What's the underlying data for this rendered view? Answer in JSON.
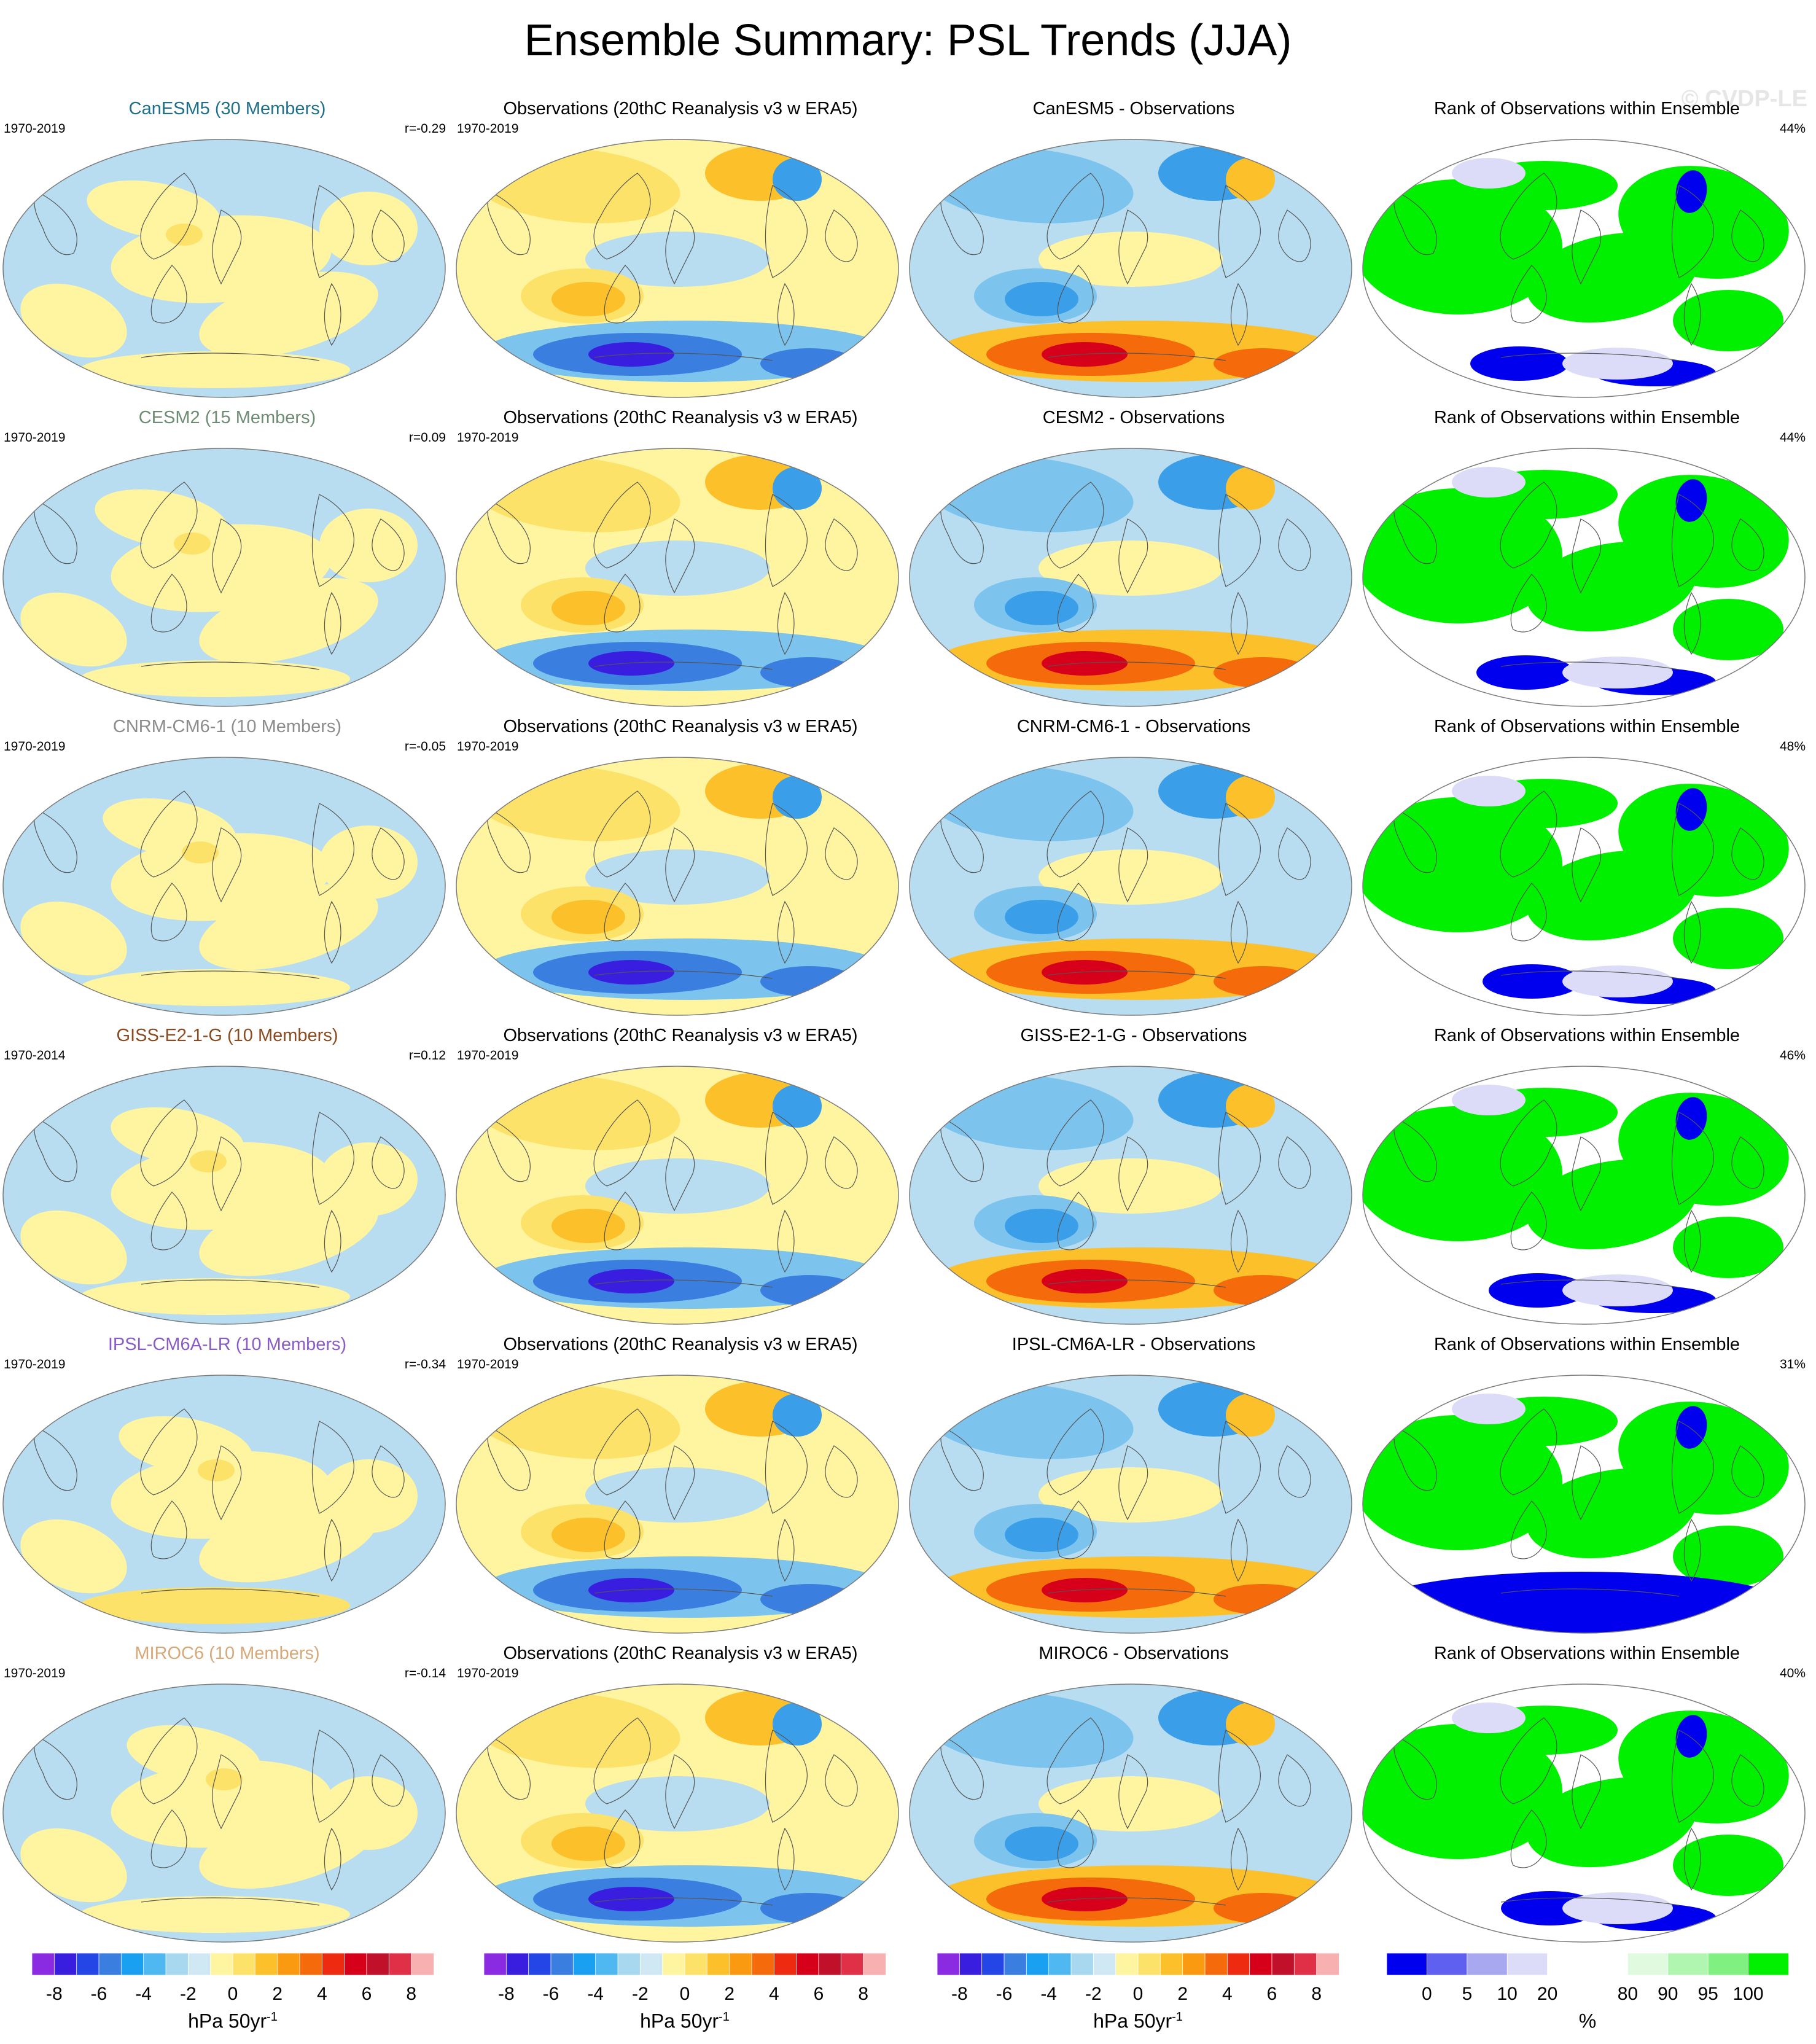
{
  "figure": {
    "title": "Ensemble Summary: PSL Trends (JJA)",
    "watermark": "© CVDP-LE"
  },
  "rows": [
    {
      "model": {
        "title": "CanESM5 (30 Members)",
        "title_color": "#1f6f8b",
        "period": "1970-2019",
        "pattern_corr": "r=-0.29"
      },
      "obs": {
        "title": "Observations (20thC Reanalysis v3 w ERA5)",
        "period": "1970-2019"
      },
      "diff": {
        "title": "CanESM5 - Observations"
      },
      "rank": {
        "title": "Rank of Observations within Ensemble",
        "percent": "44%"
      }
    },
    {
      "model": {
        "title": "CESM2 (15 Members)",
        "title_color": "#6e8c73",
        "period": "1970-2019",
        "pattern_corr": "r=0.09"
      },
      "obs": {
        "title": "Observations (20thC Reanalysis v3 w ERA5)",
        "period": "1970-2019"
      },
      "diff": {
        "title": "CESM2 - Observations"
      },
      "rank": {
        "title": "Rank of Observations within Ensemble",
        "percent": "44%"
      }
    },
    {
      "model": {
        "title": "CNRM-CM6-1 (10 Members)",
        "title_color": "#8c8c8c",
        "period": "1970-2019",
        "pattern_corr": "r=-0.05"
      },
      "obs": {
        "title": "Observations (20thC Reanalysis v3 w ERA5)",
        "period": "1970-2019"
      },
      "diff": {
        "title": "CNRM-CM6-1 - Observations"
      },
      "rank": {
        "title": "Rank of Observations within Ensemble",
        "percent": "48%"
      }
    },
    {
      "model": {
        "title": "GISS-E2-1-G (10 Members)",
        "title_color": "#8b4a1f",
        "period": "1970-2014",
        "pattern_corr": "r=0.12"
      },
      "obs": {
        "title": "Observations (20thC Reanalysis v3 w ERA5)",
        "period": "1970-2019"
      },
      "diff": {
        "title": "GISS-E2-1-G - Observations"
      },
      "rank": {
        "title": "Rank of Observations within Ensemble",
        "percent": "46%"
      }
    },
    {
      "model": {
        "title": "IPSL-CM6A-LR (10 Members)",
        "title_color": "#8a5cc8",
        "period": "1970-2019",
        "pattern_corr": "r=-0.34"
      },
      "obs": {
        "title": "Observations (20thC Reanalysis v3 w ERA5)",
        "period": "1970-2019"
      },
      "diff": {
        "title": "IPSL-CM6A-LR - Observations"
      },
      "rank": {
        "title": "Rank of Observations within Ensemble",
        "percent": "31%"
      }
    },
    {
      "model": {
        "title": "MIROC6 (10 Members)",
        "title_color": "#d7a878",
        "period": "1970-2019",
        "pattern_corr": "r=-0.14"
      },
      "obs": {
        "title": "Observations (20thC Reanalysis v3 w ERA5)",
        "period": "1970-2019"
      },
      "diff": {
        "title": "MIROC6 - Observations"
      },
      "rank": {
        "title": "Rank of Observations within Ensemble",
        "percent": "40%"
      }
    }
  ],
  "colorbars": [
    {
      "units": "hPa 50yr",
      "units_sup": "-1",
      "colors": [
        "#8a2be2",
        "#3a1ee0",
        "#2446e6",
        "#3a7fe0",
        "#1aa0f0",
        "#50b8f0",
        "#a8d8f0",
        "#cfe8f3",
        "#fff4a0",
        "#fde26a",
        "#fcc02a",
        "#f99a10",
        "#f56a0a",
        "#ee2a10",
        "#d7001a",
        "#c0102a",
        "#e03048",
        "#f8b0b0"
      ],
      "tick_labels": [
        "-8",
        "-6",
        "-4",
        "-2",
        "0",
        "2",
        "4",
        "6",
        "8"
      ]
    },
    {
      "units": "hPa 50yr",
      "units_sup": "-1",
      "colors": [
        "#8a2be2",
        "#3a1ee0",
        "#2446e6",
        "#3a7fe0",
        "#1aa0f0",
        "#50b8f0",
        "#a8d8f0",
        "#cfe8f3",
        "#fff4a0",
        "#fde26a",
        "#fcc02a",
        "#f99a10",
        "#f56a0a",
        "#ee2a10",
        "#d7001a",
        "#c0102a",
        "#e03048",
        "#f8b0b0"
      ],
      "tick_labels": [
        "-8",
        "-6",
        "-4",
        "-2",
        "0",
        "2",
        "4",
        "6",
        "8"
      ]
    },
    {
      "units": "hPa 50yr",
      "units_sup": "-1",
      "colors": [
        "#8a2be2",
        "#3a1ee0",
        "#2446e6",
        "#3a7fe0",
        "#1aa0f0",
        "#50b8f0",
        "#a8d8f0",
        "#cfe8f3",
        "#fff4a0",
        "#fde26a",
        "#fcc02a",
        "#f99a10",
        "#f56a0a",
        "#ee2a10",
        "#d7001a",
        "#c0102a",
        "#e03048",
        "#f8b0b0"
      ],
      "tick_labels": [
        "-8",
        "-6",
        "-4",
        "-2",
        "0",
        "2",
        "4",
        "6",
        "8"
      ]
    },
    {
      "units": "%",
      "units_sup": "",
      "colors": [
        "#0000ee",
        "#6060f0",
        "#a8a8f0",
        "#dcdcf8",
        "#ffffff",
        "#ffffff",
        "#e0fae0",
        "#b0f5b0",
        "#80f080",
        "#00f000"
      ],
      "tick_labels": [
        "0",
        "5",
        "10",
        "20",
        "80",
        "90",
        "95",
        "100"
      ]
    }
  ],
  "map_fill": {
    "positive": "#fff4a0",
    "negative": "#b8dcf0",
    "rank_green": "#00f000",
    "rank_blue": "#0000ee",
    "rank_lightblue": "#dcdcf8",
    "land_outline": "#555555"
  }
}
